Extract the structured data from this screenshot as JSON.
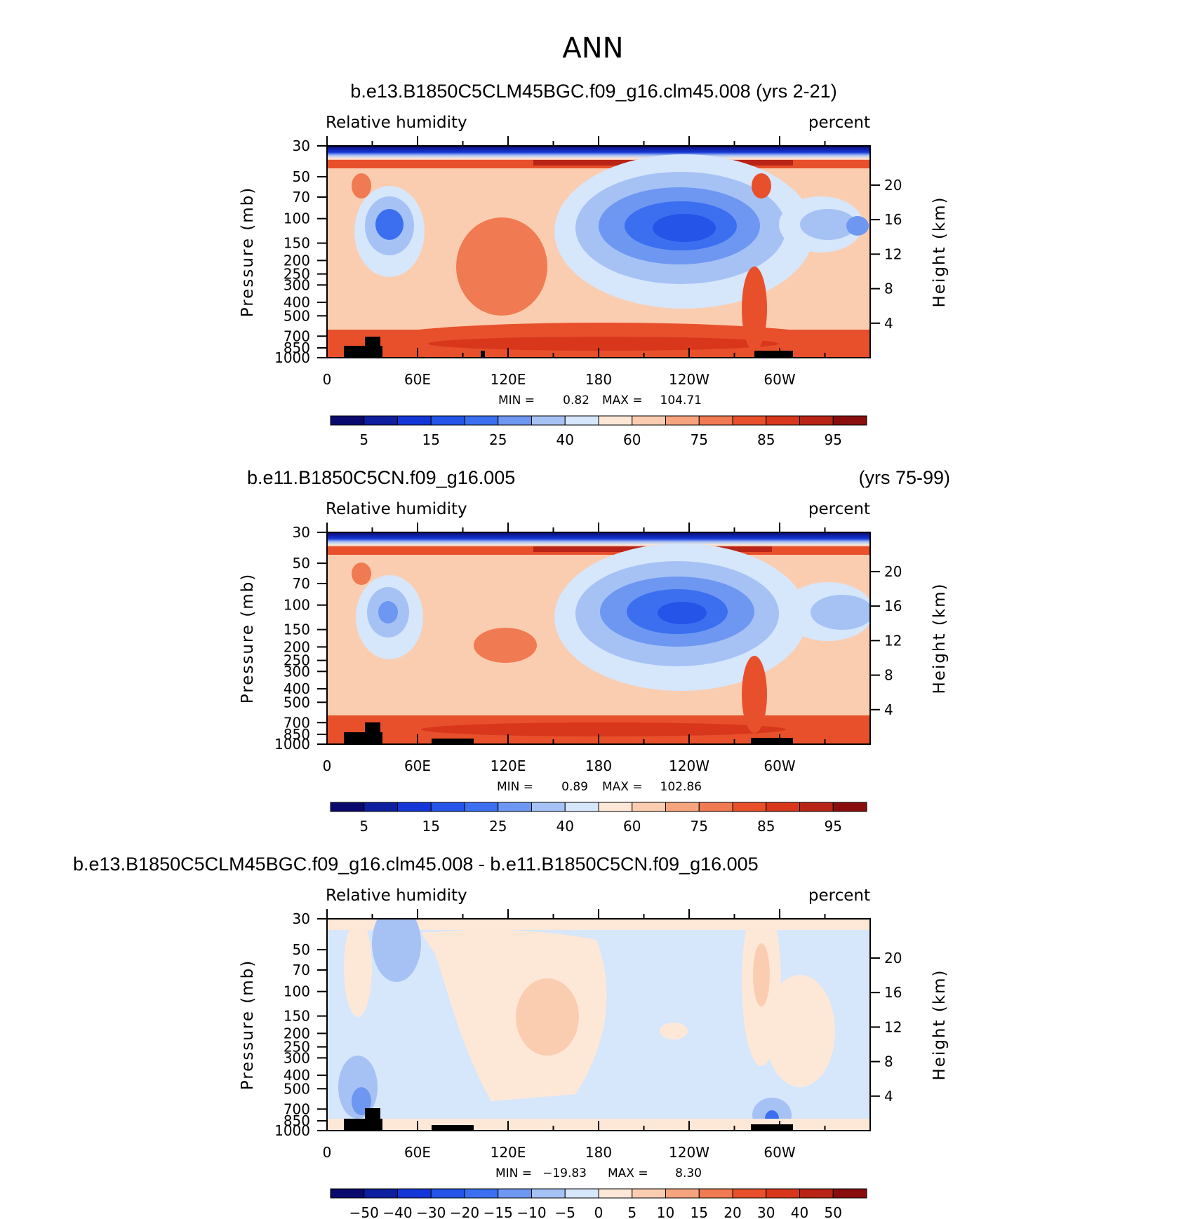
{
  "figure": {
    "title": "ANN",
    "land_color": "#000000"
  },
  "chart_data": [
    {
      "type": "heatmap",
      "title": "b.e13.B1850C5CLM45BGC.f09_g16.clm45.008 (yrs 2-21)",
      "title_right": "",
      "variable": "Relative humidity",
      "units": "percent",
      "xlabel": "",
      "ylabel": "Pressure (mb)",
      "ylabel_right": "Height (km)",
      "x_ticks": [
        "0",
        "60E",
        "120E",
        "180",
        "120W",
        "60W"
      ],
      "x_tick_lons": [
        0,
        60,
        120,
        180,
        240,
        300
      ],
      "y_ticks": [
        "30",
        "50",
        "70",
        "100",
        "150",
        "200",
        "250",
        "300",
        "400",
        "500",
        "700",
        "850",
        "1000"
      ],
      "y_tick_mb": [
        30,
        50,
        70,
        100,
        150,
        200,
        250,
        300,
        400,
        500,
        700,
        850,
        1000
      ],
      "height_ticks": [
        "20",
        "16",
        "12",
        "8",
        "4"
      ],
      "height_tick_km": [
        20,
        16,
        12,
        8,
        4
      ],
      "min_label": "MIN =",
      "min_value": "0.82",
      "max_label": "MAX =",
      "max_value": "104.71",
      "colorbar_labels": [
        "5",
        "15",
        "25",
        "40",
        "60",
        "75",
        "85",
        "95"
      ]
    },
    {
      "type": "heatmap",
      "title": "b.e11.B1850C5CN.f09_g16.005",
      "title_right": "(yrs 75-99)",
      "variable": "Relative humidity",
      "units": "percent",
      "xlabel": "",
      "ylabel": "Pressure (mb)",
      "ylabel_right": "Height (km)",
      "x_ticks": [
        "0",
        "60E",
        "120E",
        "180",
        "120W",
        "60W"
      ],
      "x_tick_lons": [
        0,
        60,
        120,
        180,
        240,
        300
      ],
      "y_ticks": [
        "30",
        "50",
        "70",
        "100",
        "150",
        "200",
        "250",
        "300",
        "400",
        "500",
        "700",
        "850",
        "1000"
      ],
      "y_tick_mb": [
        30,
        50,
        70,
        100,
        150,
        200,
        250,
        300,
        400,
        500,
        700,
        850,
        1000
      ],
      "height_ticks": [
        "20",
        "16",
        "12",
        "8",
        "4"
      ],
      "height_tick_km": [
        20,
        16,
        12,
        8,
        4
      ],
      "min_label": "MIN =",
      "min_value": "0.89",
      "max_label": "MAX =",
      "max_value": "102.86",
      "colorbar_labels": [
        "5",
        "15",
        "25",
        "40",
        "60",
        "75",
        "85",
        "95"
      ]
    },
    {
      "type": "heatmap",
      "title": "b.e13.B1850C5CLM45BGC.f09_g16.clm45.008 - b.e11.B1850C5CN.f09_g16.005",
      "title_right": "",
      "variable": "Relative humidity",
      "units": "percent",
      "xlabel": "",
      "ylabel": "Pressure (mb)",
      "ylabel_right": "Height (km)",
      "x_ticks": [
        "0",
        "60E",
        "120E",
        "180",
        "120W",
        "60W"
      ],
      "x_tick_lons": [
        0,
        60,
        120,
        180,
        240,
        300
      ],
      "y_ticks": [
        "30",
        "50",
        "70",
        "100",
        "150",
        "200",
        "250",
        "300",
        "400",
        "500",
        "700",
        "850",
        "1000"
      ],
      "y_tick_mb": [
        30,
        50,
        70,
        100,
        150,
        200,
        250,
        300,
        400,
        500,
        700,
        850,
        1000
      ],
      "height_ticks": [
        "20",
        "16",
        "12",
        "8",
        "4"
      ],
      "height_tick_km": [
        20,
        16,
        12,
        8,
        4
      ],
      "min_label": "MIN =",
      "min_value": "−19.83",
      "max_label": "MAX =",
      "max_value": "8.30",
      "colorbar_labels": [
        "−50",
        "−40",
        "−30",
        "−20",
        "−15",
        "−10",
        "−5",
        "0",
        "5",
        "10",
        "15",
        "20",
        "30",
        "40",
        "50"
      ]
    }
  ],
  "palettes": {
    "rh": [
      "#0a0a6e",
      "#0d1e9e",
      "#1436d6",
      "#2454e8",
      "#3b6ff0",
      "#6e97f2",
      "#a6c2f5",
      "#d6e6fb",
      "#fde8d8",
      "#fbcdb0",
      "#f6a47e",
      "#f07a52",
      "#e8502c",
      "#d8371c",
      "#b82415",
      "#8a0d0d"
    ],
    "diff": [
      "#0a0a6e",
      "#0d1e9e",
      "#1436d6",
      "#2454e8",
      "#3b6ff0",
      "#6e97f2",
      "#a6c2f5",
      "#d6e6fb",
      "#fde8d8",
      "#fbcdb0",
      "#f6a47e",
      "#f07a52",
      "#e8502c",
      "#d8371c",
      "#b82415",
      "#8a0d0d"
    ]
  }
}
